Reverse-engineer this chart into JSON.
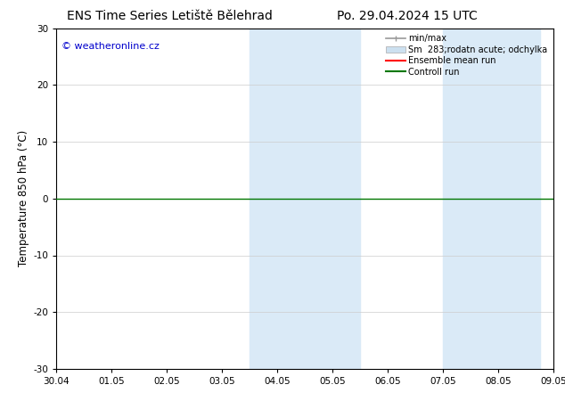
{
  "title_left": "ENS Time Series Letiště Bělehrad",
  "title_right": "Po. 29.04.2024 15 UTC",
  "ylabel": "Temperature 850 hPa (°C)",
  "watermark": "© weatheronline.cz",
  "ylim": [
    -30,
    30
  ],
  "yticks": [
    -30,
    -20,
    -10,
    0,
    10,
    20,
    30
  ],
  "xtick_labels": [
    "30.04",
    "01.05",
    "02.05",
    "03.05",
    "04.05",
    "05.05",
    "06.05",
    "07.05",
    "08.05",
    "09.05"
  ],
  "xtick_positions": [
    0,
    1,
    2,
    3,
    4,
    5,
    6,
    7,
    8,
    9
  ],
  "shaded_regions": [
    {
      "xmin": 3.5,
      "xmax": 5.5,
      "color": "#daeaf7"
    },
    {
      "xmin": 7.0,
      "xmax": 8.75,
      "color": "#daeaf7"
    }
  ],
  "green_line_y": 0.0,
  "bg_color": "#ffffff",
  "plot_bg_color": "#ffffff",
  "border_color": "#000000",
  "grid_color": "#cccccc",
  "watermark_color": "#0000cc",
  "title_fontsize": 10,
  "tick_fontsize": 7.5,
  "ylabel_fontsize": 8.5,
  "watermark_fontsize": 8
}
